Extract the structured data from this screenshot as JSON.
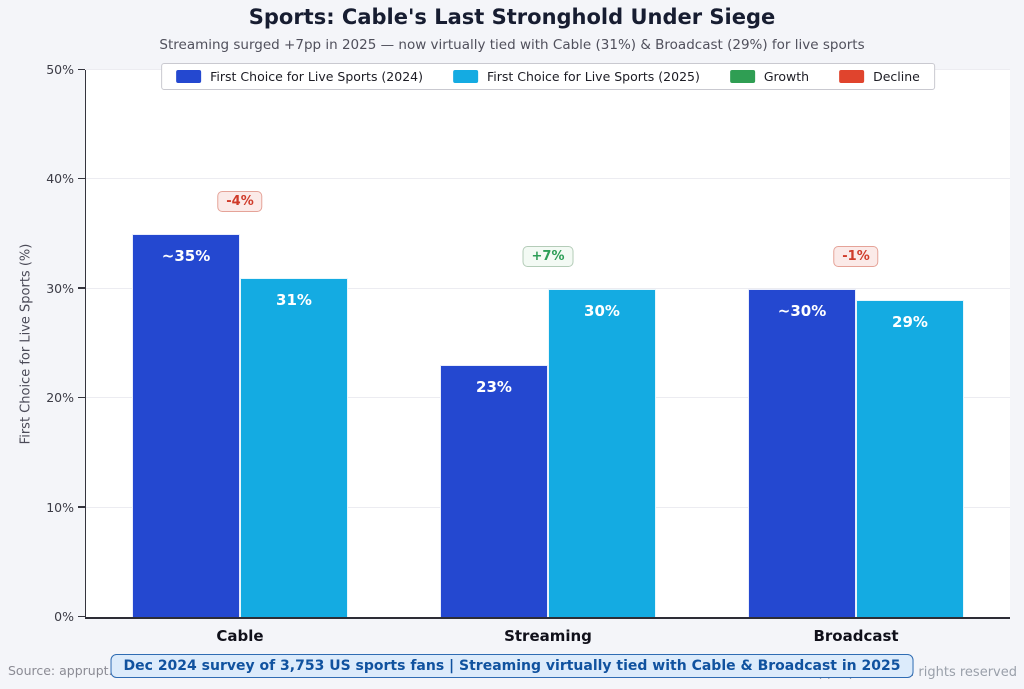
{
  "page": {
    "background": "#f4f5f9"
  },
  "chart_data": {
    "type": "bar",
    "title": "Sports: Cable's Last Stronghold Under Siege",
    "subtitle": "Streaming surged +7pp in 2025 — now virtually tied with Cable (31%) & Broadcast (29%) for live sports",
    "ylabel": "First Choice for Live Sports (%)",
    "xlabel": "",
    "ylim": [
      0,
      50
    ],
    "yticks": [
      0,
      10,
      20,
      30,
      40,
      50
    ],
    "ytick_labels": [
      "0%",
      "10%",
      "20%",
      "30%",
      "40%",
      "50%"
    ],
    "grid": true,
    "legend_position": "top-center",
    "categories": [
      "Cable",
      "Streaming",
      "Broadcast"
    ],
    "series": [
      {
        "name": "First Choice for Live Sports (2024)",
        "color": "#2448d0",
        "values": [
          35,
          23,
          30
        ],
        "bar_labels": [
          "~35%",
          "23%",
          "~30%"
        ]
      },
      {
        "name": "First Choice for Live Sports (2025)",
        "color": "#14abe2",
        "values": [
          31,
          30,
          29
        ],
        "bar_labels": [
          "31%",
          "30%",
          "29%"
        ]
      }
    ],
    "change_badges": [
      {
        "category": "Cable",
        "label": "-4%",
        "kind": "decline"
      },
      {
        "category": "Streaming",
        "label": "+7%",
        "kind": "growth"
      },
      {
        "category": "Broadcast",
        "label": "-1%",
        "kind": "decline"
      }
    ],
    "legend": [
      {
        "label": "First Choice for Live Sports (2024)",
        "color": "#2448d0"
      },
      {
        "label": "First Choice for Live Sports (2025)",
        "color": "#14abe2"
      },
      {
        "label": "Growth",
        "color": "#2f9e53"
      },
      {
        "label": "Decline",
        "color": "#e0442d"
      }
    ],
    "badge_colors": {
      "growth": {
        "text": "#2d9e57",
        "bg": "#f3faf4",
        "border": "#b4ccb8"
      },
      "decline": {
        "text": "#cf3b2a",
        "bg": "#fbeae8",
        "border": "#e5a398"
      }
    },
    "footer_note": "Dec 2024 survey of 3,753 US sports fans  |  Streaming virtually tied with Cable & Broadcast in 2025",
    "source": "Source: apprupt.com",
    "copyright": "© apprupt.com  All rights reserved"
  }
}
